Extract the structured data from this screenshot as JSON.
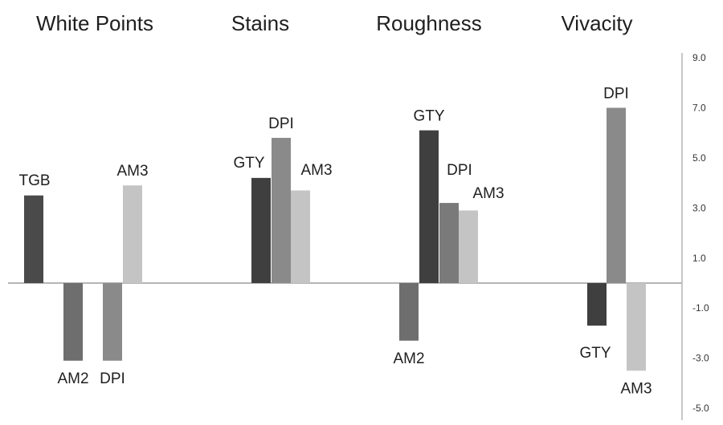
{
  "chart_data": {
    "type": "bar",
    "categories": [
      "White Points",
      "Stains",
      "Roughness",
      "Vivacity"
    ],
    "bars": [
      [
        {
          "label": "TGB",
          "value": 3.5,
          "color": "#4a4a4a"
        },
        {
          "label": "AM2",
          "value": -3.1,
          "color": "#6e6e6e"
        },
        {
          "label": "DPI",
          "value": -3.1,
          "color": "#8a8a8a"
        },
        {
          "label": "AM3",
          "value": 3.9,
          "color": "#c4c4c4"
        }
      ],
      [
        {
          "label": "GTY",
          "value": 4.2,
          "color": "#3f3f3f"
        },
        {
          "label": "DPI",
          "value": 5.8,
          "color": "#8a8a8a"
        },
        {
          "label": "AM3",
          "value": 3.7,
          "color": "#c4c4c4"
        }
      ],
      [
        {
          "label": "AM2",
          "value": -2.3,
          "color": "#6e6e6e"
        },
        {
          "label": "GTY",
          "value": 6.1,
          "color": "#3f3f3f"
        },
        {
          "label": "DPI",
          "value": 3.2,
          "color": "#7a7a7a"
        },
        {
          "label": "AM3",
          "value": 2.9,
          "color": "#c4c4c4"
        }
      ],
      [
        {
          "label": "GTY",
          "value": -1.7,
          "color": "#3f3f3f"
        },
        {
          "label": "DPI",
          "value": 7.0,
          "color": "#8a8a8a"
        },
        {
          "label": "AM3",
          "value": -3.5,
          "color": "#c4c4c4"
        }
      ]
    ],
    "yticks": [
      "9.0",
      "7.0",
      "5.0",
      "3.0",
      "1.0",
      "-1.0",
      "-3.0",
      "-5.0"
    ],
    "ylim": [
      -5,
      9
    ],
    "legend": "none",
    "grid": false
  }
}
